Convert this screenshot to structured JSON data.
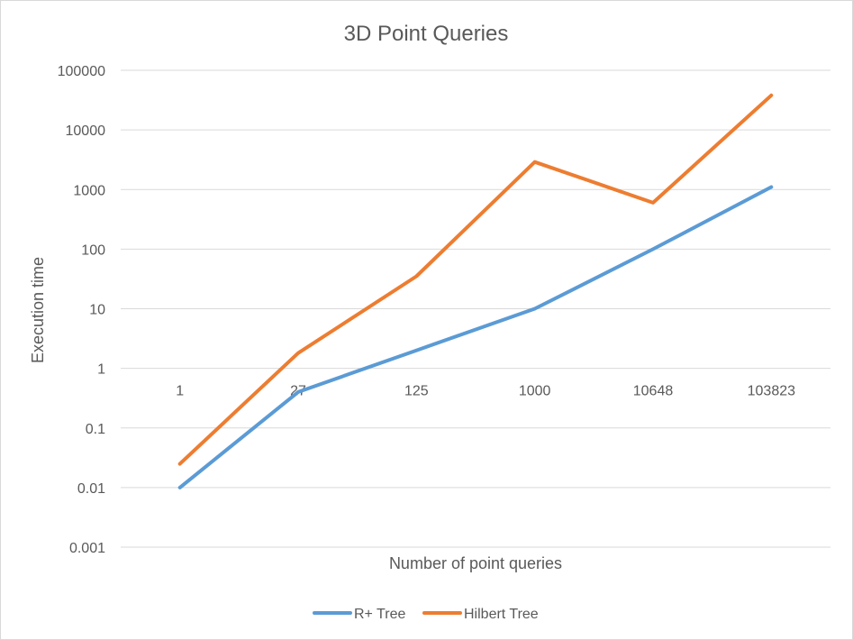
{
  "chart_data": {
    "type": "line",
    "title": "3D Point Queries",
    "xlabel": "Number of point queries",
    "ylabel": "Execution time",
    "y_scale": "log",
    "ylim": [
      0.001,
      100000
    ],
    "y_ticks": [
      "100000",
      "10000",
      "1000",
      "100",
      "10",
      "1",
      "0.1",
      "0.01",
      "0.001"
    ],
    "categories": [
      "1",
      "27",
      "125",
      "1000",
      "10648",
      "103823"
    ],
    "series": [
      {
        "name": "R+ Tree",
        "color": "#5b9bd5",
        "values": [
          0.01,
          0.4,
          2,
          10,
          100,
          1100
        ]
      },
      {
        "name": "Hilbert Tree",
        "color": "#ed7d31",
        "values": [
          0.025,
          1.8,
          35,
          2900,
          600,
          38000
        ]
      }
    ],
    "grid": true,
    "legend_position": "bottom"
  }
}
